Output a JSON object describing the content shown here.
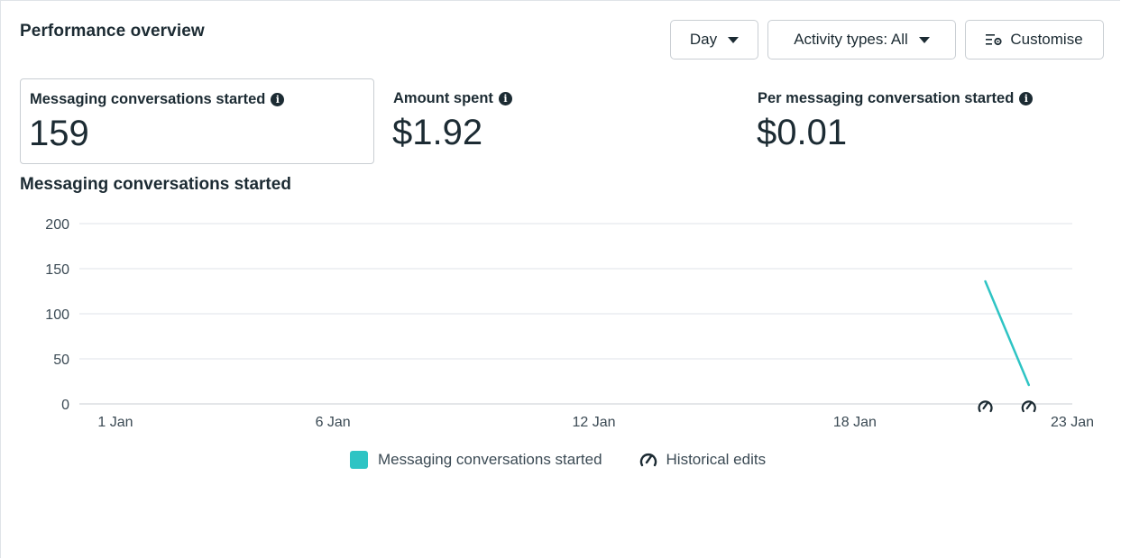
{
  "header": {
    "title": "Performance overview",
    "day_label": "Day",
    "activity_label": "Activity types: All",
    "customise_label": "Customise"
  },
  "metrics": [
    {
      "label": "Messaging conversations started",
      "value": "159"
    },
    {
      "label": "Amount spent",
      "value": "$1.92"
    },
    {
      "label": "Per messaging conversation started",
      "value": "$0.01"
    }
  ],
  "colors": {
    "series": "#2ec4c4",
    "text": "#1c2b33",
    "grid": "#dfe3e8"
  },
  "chart_data": {
    "type": "line",
    "title": "Messaging conversations started",
    "y_ticks": [
      0,
      50,
      100,
      150,
      200
    ],
    "ylim": [
      0,
      200
    ],
    "x_tick_labels": [
      "1 Jan",
      "6 Jan",
      "12 Jan",
      "18 Jan",
      "23 Jan"
    ],
    "x_tick_days": [
      1,
      6,
      12,
      18,
      23
    ],
    "xlim": [
      1,
      23
    ],
    "series": [
      {
        "name": "Messaging conversations started",
        "x": [
          21,
          22
        ],
        "y": [
          136,
          21
        ]
      }
    ],
    "historical_edits_days": [
      21,
      22
    ],
    "legend": [
      "Messaging conversations started",
      "Historical edits"
    ],
    "grid": true,
    "legend_position": "bottom-center"
  }
}
